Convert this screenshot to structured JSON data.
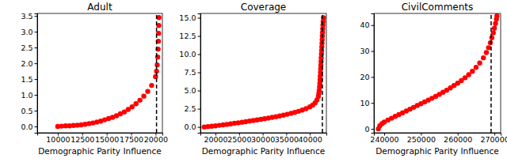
{
  "chart_data": [
    {
      "type": "scatter",
      "title": "Adult",
      "x_label": "Demographic Parity Influence",
      "color": "red",
      "vline": 20100,
      "line_style": "dashed",
      "x": [
        10000,
        10400,
        10800,
        11200,
        11600,
        12000,
        12400,
        12800,
        13200,
        13600,
        14000,
        14400,
        14800,
        15200,
        15600,
        16000,
        16400,
        16800,
        17200,
        17600,
        18000,
        18400,
        18800,
        19200,
        19600,
        20000,
        20100,
        20170,
        20220,
        20260,
        20290,
        20315,
        20335,
        20350
      ],
      "values": [
        0.0,
        0.01,
        0.02,
        0.02,
        0.03,
        0.04,
        0.05,
        0.07,
        0.09,
        0.11,
        0.14,
        0.17,
        0.21,
        0.25,
        0.29,
        0.34,
        0.4,
        0.46,
        0.54,
        0.62,
        0.72,
        0.83,
        0.96,
        1.11,
        1.3,
        1.58,
        1.75,
        1.95,
        2.2,
        2.45,
        2.7,
        2.95,
        3.2,
        3.45
      ],
      "xlim": [
        7900,
        20700
      ],
      "ylim": [
        -0.2,
        3.58
      ],
      "xticks": [
        10000,
        12500,
        15000,
        17500,
        20000
      ],
      "yticks": [
        {
          "value": 0,
          "label": "0.0"
        },
        {
          "value": 0.5,
          "label": "0.5"
        },
        {
          "value": 1,
          "label": "1.0"
        },
        {
          "value": 1.5,
          "label": "1.5"
        },
        {
          "value": 2,
          "label": "2.0"
        },
        {
          "value": 2.5,
          "label": "2.5"
        },
        {
          "value": 3,
          "label": "3.0"
        },
        {
          "value": 3.5,
          "label": "3.5"
        }
      ]
    },
    {
      "type": "scatter",
      "title": "Coverage",
      "x_label": "Demographic Parity Influence",
      "color": "red",
      "vline": 42650,
      "line_style": "dashed",
      "x": [
        17600,
        18400,
        19200,
        20000,
        20800,
        21600,
        22400,
        23200,
        24000,
        24800,
        25600,
        26400,
        27200,
        28000,
        28800,
        29600,
        30400,
        31200,
        32000,
        32800,
        33600,
        34400,
        35200,
        36000,
        36800,
        37600,
        38400,
        39200,
        40000,
        40600,
        41100,
        41500,
        41800,
        41900,
        41980,
        42050,
        42110,
        42160,
        42210,
        42250,
        42290,
        42330,
        42370,
        42410,
        42450,
        42490,
        42530,
        42570,
        42610,
        42650,
        42690,
        42730,
        42770,
        42820,
        42880
      ],
      "values": [
        0.0,
        0.05,
        0.1,
        0.15,
        0.22,
        0.28,
        0.35,
        0.42,
        0.5,
        0.57,
        0.65,
        0.72,
        0.8,
        0.88,
        0.96,
        1.05,
        1.13,
        1.22,
        1.31,
        1.41,
        1.51,
        1.62,
        1.74,
        1.87,
        2.0,
        2.15,
        2.32,
        2.52,
        2.75,
        3.0,
        3.3,
        3.7,
        4.2,
        4.6,
        5.0,
        5.5,
        6.0,
        6.5,
        7.0,
        7.5,
        8.0,
        8.5,
        9.0,
        9.5,
        10.0,
        10.5,
        11.0,
        11.5,
        12.0,
        12.5,
        13.0,
        13.5,
        14.0,
        14.5,
        15.0
      ],
      "xlim": [
        16800,
        43500
      ],
      "ylim": [
        -0.8,
        15.6
      ],
      "xticks": [
        20000,
        25000,
        30000,
        35000,
        40000
      ],
      "yticks": [
        {
          "value": 0,
          "label": "0.0"
        },
        {
          "value": 2.5,
          "label": "2.5"
        },
        {
          "value": 5,
          "label": "5.0"
        },
        {
          "value": 7.5,
          "label": "7.5"
        },
        {
          "value": 10,
          "label": "10.0"
        },
        {
          "value": 12.5,
          "label": "12.5"
        },
        {
          "value": 15,
          "label": "15.0"
        }
      ]
    },
    {
      "type": "scatter",
      "title": "CivilComments",
      "x_label": "Demographic Parity Influence",
      "color": "red",
      "vline": 269100,
      "line_style": "dashed",
      "x": [
        238400,
        238800,
        239400,
        240000,
        241000,
        242000,
        243000,
        244000,
        245000,
        246000,
        247000,
        248000,
        249000,
        250000,
        251000,
        252000,
        253000,
        254000,
        255000,
        256000,
        257000,
        258000,
        259000,
        260000,
        261000,
        262000,
        263000,
        264000,
        265000,
        266000,
        267000,
        267800,
        268400,
        268900,
        269300,
        269700,
        270000,
        270300,
        270550,
        270700
      ],
      "values": [
        0.0,
        1.2,
        2.0,
        2.6,
        3.4,
        4.1,
        4.8,
        5.5,
        6.2,
        6.9,
        7.6,
        8.3,
        9.0,
        9.7,
        10.4,
        11.1,
        11.8,
        12.5,
        13.3,
        14.1,
        14.9,
        15.8,
        16.7,
        17.6,
        18.6,
        19.7,
        20.9,
        22.2,
        23.7,
        25.4,
        27.4,
        29.4,
        31.3,
        33.2,
        35.1,
        37.0,
        38.8,
        40.6,
        42.3,
        43.5
      ],
      "xlim": [
        237200,
        271700
      ],
      "ylim": [
        -1.5,
        44.5
      ],
      "xticks": [
        240000,
        250000,
        260000,
        270000
      ],
      "yticks": [
        0,
        10,
        20,
        30,
        40
      ]
    }
  ]
}
